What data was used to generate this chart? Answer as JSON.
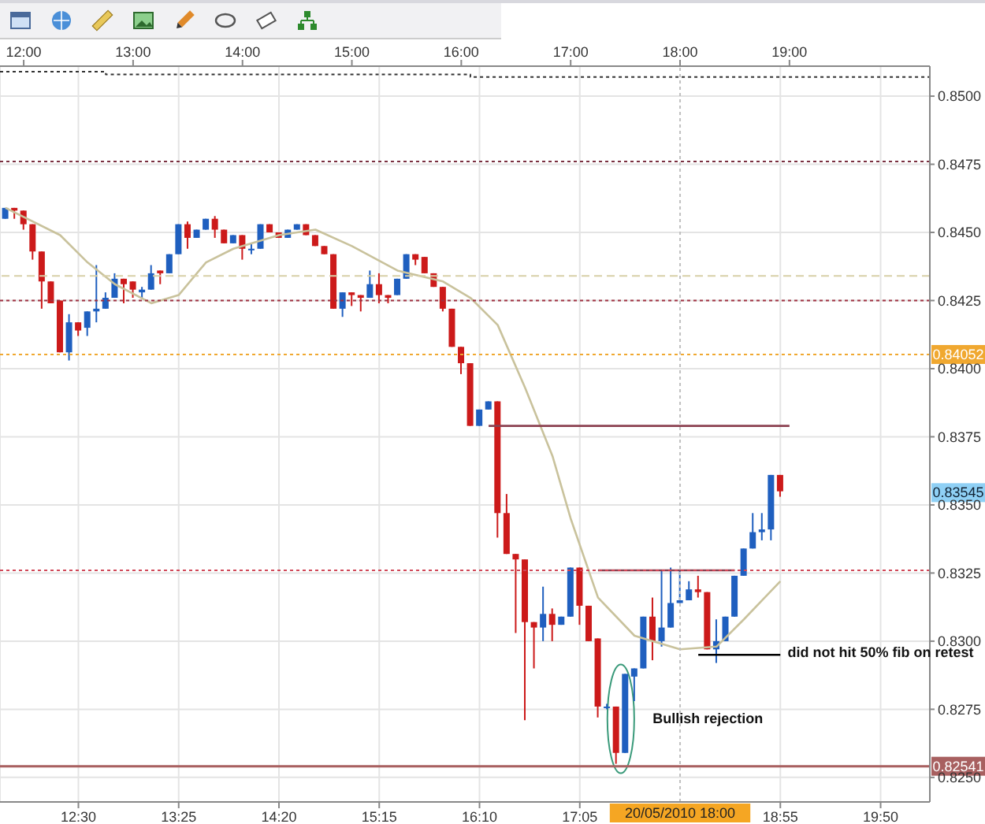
{
  "chart_data": {
    "type": "candlestick",
    "x": [
      "2010-05-20T11:50",
      "2010-05-20T11:55",
      "2010-05-20T12:00",
      "2010-05-20T12:05",
      "2010-05-20T12:10",
      "2010-05-20T12:15",
      "2010-05-20T12:20",
      "2010-05-20T12:25",
      "2010-05-20T12:30",
      "2010-05-20T12:35",
      "2010-05-20T12:40",
      "2010-05-20T12:45",
      "2010-05-20T12:50",
      "2010-05-20T12:55",
      "2010-05-20T13:00",
      "2010-05-20T13:05",
      "2010-05-20T13:10",
      "2010-05-20T13:15",
      "2010-05-20T13:20",
      "2010-05-20T13:25",
      "2010-05-20T13:30",
      "2010-05-20T13:35",
      "2010-05-20T13:40",
      "2010-05-20T13:45",
      "2010-05-20T13:50",
      "2010-05-20T13:55",
      "2010-05-20T14:00",
      "2010-05-20T14:05",
      "2010-05-20T14:10",
      "2010-05-20T14:15",
      "2010-05-20T14:20",
      "2010-05-20T14:25",
      "2010-05-20T14:30",
      "2010-05-20T14:35",
      "2010-05-20T14:40",
      "2010-05-20T14:45",
      "2010-05-20T14:50",
      "2010-05-20T14:55",
      "2010-05-20T15:00",
      "2010-05-20T15:05",
      "2010-05-20T15:10",
      "2010-05-20T15:15",
      "2010-05-20T15:20",
      "2010-05-20T15:25",
      "2010-05-20T15:30",
      "2010-05-20T15:35",
      "2010-05-20T15:40",
      "2010-05-20T15:45",
      "2010-05-20T15:50",
      "2010-05-20T15:55",
      "2010-05-20T16:00",
      "2010-05-20T16:05",
      "2010-05-20T16:10",
      "2010-05-20T16:15",
      "2010-05-20T16:20",
      "2010-05-20T16:25",
      "2010-05-20T16:30",
      "2010-05-20T16:35",
      "2010-05-20T16:40",
      "2010-05-20T16:45",
      "2010-05-20T16:50",
      "2010-05-20T16:55",
      "2010-05-20T17:00",
      "2010-05-20T17:05",
      "2010-05-20T17:10",
      "2010-05-20T17:15",
      "2010-05-20T17:20",
      "2010-05-20T17:25",
      "2010-05-20T17:30",
      "2010-05-20T17:35",
      "2010-05-20T17:40",
      "2010-05-20T17:45",
      "2010-05-20T17:50",
      "2010-05-20T17:55",
      "2010-05-20T18:00",
      "2010-05-20T18:05",
      "2010-05-20T18:10",
      "2010-05-20T18:15",
      "2010-05-20T18:20",
      "2010-05-20T18:25",
      "2010-05-20T18:30",
      "2010-05-20T18:35",
      "2010-05-20T18:40",
      "2010-05-20T18:45",
      "2010-05-20T18:50",
      "2010-05-20T18:55"
    ],
    "ohlc": [
      [
        0.8455,
        0.8459,
        0.8455,
        0.8459
      ],
      [
        0.8459,
        0.8459,
        0.8455,
        0.8458
      ],
      [
        0.8458,
        0.8458,
        0.8451,
        0.8453
      ],
      [
        0.8453,
        0.8453,
        0.844,
        0.8443
      ],
      [
        0.8443,
        0.8443,
        0.8422,
        0.8432
      ],
      [
        0.8432,
        0.8432,
        0.8424,
        0.8424
      ],
      [
        0.8425,
        0.8425,
        0.8406,
        0.8406
      ],
      [
        0.8406,
        0.842,
        0.8403,
        0.8417
      ],
      [
        0.8417,
        0.8417,
        0.8412,
        0.8414
      ],
      [
        0.8415,
        0.8421,
        0.8412,
        0.8421
      ],
      [
        0.8421,
        0.8438,
        0.8417,
        0.8422
      ],
      [
        0.8422,
        0.8428,
        0.8422,
        0.8426
      ],
      [
        0.8426,
        0.8435,
        0.8426,
        0.8433
      ],
      [
        0.8433,
        0.8433,
        0.8424,
        0.8431
      ],
      [
        0.8432,
        0.8432,
        0.8426,
        0.8429
      ],
      [
        0.8428,
        0.843,
        0.8426,
        0.8429
      ],
      [
        0.8429,
        0.8438,
        0.8429,
        0.8435
      ],
      [
        0.8436,
        0.8436,
        0.8431,
        0.8435
      ],
      [
        0.8435,
        0.8442,
        0.8435,
        0.8442
      ],
      [
        0.8442,
        0.8453,
        0.8442,
        0.8453
      ],
      [
        0.8453,
        0.8454,
        0.8444,
        0.8448
      ],
      [
        0.8448,
        0.8451,
        0.8448,
        0.8451
      ],
      [
        0.8451,
        0.8455,
        0.8451,
        0.8455
      ],
      [
        0.8455,
        0.8456,
        0.8448,
        0.8451
      ],
      [
        0.8451,
        0.8451,
        0.8446,
        0.8446
      ],
      [
        0.8446,
        0.8449,
        0.8446,
        0.8449
      ],
      [
        0.8449,
        0.8449,
        0.844,
        0.8444
      ],
      [
        0.8444,
        0.8446,
        0.8442,
        0.8444
      ],
      [
        0.8444,
        0.8453,
        0.8444,
        0.8453
      ],
      [
        0.8453,
        0.8453,
        0.845,
        0.845
      ],
      [
        0.845,
        0.845,
        0.8448,
        0.8448
      ],
      [
        0.8448,
        0.8451,
        0.8448,
        0.8451
      ],
      [
        0.8451,
        0.8453,
        0.8451,
        0.8453
      ],
      [
        0.8453,
        0.8453,
        0.8449,
        0.8449
      ],
      [
        0.8449,
        0.8449,
        0.8445,
        0.8445
      ],
      [
        0.8445,
        0.8445,
        0.8442,
        0.8442
      ],
      [
        0.8442,
        0.8442,
        0.8422,
        0.8422
      ],
      [
        0.8422,
        0.8428,
        0.8419,
        0.8428
      ],
      [
        0.8428,
        0.8428,
        0.8423,
        0.8427
      ],
      [
        0.8427,
        0.8427,
        0.8421,
        0.8426
      ],
      [
        0.8426,
        0.8436,
        0.8426,
        0.8431
      ],
      [
        0.8431,
        0.8435,
        0.8424,
        0.8427
      ],
      [
        0.8427,
        0.8427,
        0.8424,
        0.8426
      ],
      [
        0.8427,
        0.8433,
        0.8427,
        0.8433
      ],
      [
        0.8433,
        0.8442,
        0.8433,
        0.8442
      ],
      [
        0.8442,
        0.8442,
        0.8438,
        0.844
      ],
      [
        0.8441,
        0.8441,
        0.8435,
        0.8435
      ],
      [
        0.8435,
        0.8435,
        0.843,
        0.843
      ],
      [
        0.843,
        0.843,
        0.8421,
        0.8422
      ],
      [
        0.8422,
        0.8422,
        0.8408,
        0.8408
      ],
      [
        0.8408,
        0.8408,
        0.8398,
        0.8402
      ],
      [
        0.8402,
        0.8402,
        0.8379,
        0.8379
      ],
      [
        0.8379,
        0.8385,
        0.8379,
        0.8385
      ],
      [
        0.8385,
        0.8388,
        0.8385,
        0.8388
      ],
      [
        0.8388,
        0.8388,
        0.8338,
        0.8347
      ],
      [
        0.8347,
        0.8354,
        0.8332,
        0.8332
      ],
      [
        0.8332,
        0.8332,
        0.8303,
        0.833
      ],
      [
        0.833,
        0.833,
        0.8271,
        0.8307
      ],
      [
        0.8307,
        0.8307,
        0.829,
        0.8305
      ],
      [
        0.8305,
        0.832,
        0.83,
        0.831
      ],
      [
        0.831,
        0.8312,
        0.83,
        0.8306
      ],
      [
        0.8306,
        0.8309,
        0.8306,
        0.8309
      ],
      [
        0.8309,
        0.8327,
        0.8309,
        0.8327
      ],
      [
        0.8327,
        0.8327,
        0.8306,
        0.8313
      ],
      [
        0.8313,
        0.8313,
        0.83,
        0.83
      ],
      [
        0.8301,
        0.8301,
        0.8272,
        0.8276
      ],
      [
        0.8276,
        0.8277,
        0.8275,
        0.8276
      ],
      [
        0.8276,
        0.8276,
        0.8255,
        0.8259
      ],
      [
        0.8259,
        0.8288,
        0.8259,
        0.8288
      ],
      [
        0.8287,
        0.829,
        0.8278,
        0.829
      ],
      [
        0.829,
        0.8309,
        0.829,
        0.8309
      ],
      [
        0.8309,
        0.8316,
        0.8293,
        0.83
      ],
      [
        0.83,
        0.8326,
        0.8298,
        0.8305
      ],
      [
        0.8305,
        0.8327,
        0.8305,
        0.8314
      ],
      [
        0.8314,
        0.8326,
        0.8314,
        0.8315
      ],
      [
        0.8315,
        0.8322,
        0.8315,
        0.8319
      ],
      [
        0.8319,
        0.8324,
        0.8316,
        0.8318
      ],
      [
        0.8318,
        0.8318,
        0.8297,
        0.8297
      ],
      [
        0.8297,
        0.8308,
        0.8292,
        0.83
      ],
      [
        0.83,
        0.8309,
        0.83,
        0.8309
      ],
      [
        0.8309,
        0.8324,
        0.8309,
        0.8324
      ],
      [
        0.8324,
        0.8334,
        0.8324,
        0.8334
      ],
      [
        0.8334,
        0.8347,
        0.8334,
        0.834
      ],
      [
        0.834,
        0.8347,
        0.8337,
        0.8341
      ],
      [
        0.8341,
        0.8361,
        0.8337,
        0.8361
      ],
      [
        0.8361,
        0.8361,
        0.8353,
        0.8355
      ]
    ],
    "colors": [
      "#1f5fbf",
      "#cc1a1a",
      "#cc1a1a",
      "#cc1a1a",
      "#cc1a1a",
      "#cc1a1a",
      "#cc1a1a",
      "#1f5fbf",
      "#cc1a1a",
      "#1f5fbf",
      "#1f5fbf",
      "#1f5fbf",
      "#1f5fbf",
      "#cc1a1a",
      "#cc1a1a",
      "#1f5fbf",
      "#1f5fbf",
      "#cc1a1a",
      "#1f5fbf",
      "#1f5fbf",
      "#cc1a1a",
      "#1f5fbf",
      "#1f5fbf",
      "#cc1a1a",
      "#cc1a1a",
      "#1f5fbf",
      "#cc1a1a",
      "#1f5fbf",
      "#1f5fbf",
      "#cc1a1a",
      "#cc1a1a",
      "#1f5fbf",
      "#1f5fbf",
      "#cc1a1a",
      "#cc1a1a",
      "#cc1a1a",
      "#cc1a1a",
      "#1f5fbf",
      "#cc1a1a",
      "#cc1a1a",
      "#1f5fbf",
      "#cc1a1a",
      "#cc1a1a",
      "#1f5fbf",
      "#1f5fbf",
      "#cc1a1a",
      "#cc1a1a",
      "#cc1a1a",
      "#cc1a1a",
      "#cc1a1a",
      "#cc1a1a",
      "#cc1a1a",
      "#1f5fbf",
      "#1f5fbf",
      "#cc1a1a",
      "#cc1a1a",
      "#cc1a1a",
      "#cc1a1a",
      "#cc1a1a",
      "#1f5fbf",
      "#cc1a1a",
      "#1f5fbf",
      "#1f5fbf",
      "#cc1a1a",
      "#cc1a1a",
      "#cc1a1a",
      "#1f5fbf",
      "#cc1a1a",
      "#1f5fbf",
      "#1f5fbf",
      "#1f5fbf",
      "#cc1a1a",
      "#1f5fbf",
      "#1f5fbf",
      "#1f5fbf",
      "#1f5fbf",
      "#cc1a1a",
      "#cc1a1a",
      "#1f5fbf",
      "#1f5fbf",
      "#1f5fbf",
      "#1f5fbf",
      "#1f5fbf",
      "#1f5fbf",
      "#1f5fbf",
      "#cc1a1a"
    ],
    "series": [
      {
        "type": "line",
        "color": "#c9c29c",
        "x": [
          "2010-05-20T11:50",
          "2010-05-20T12:20",
          "2010-05-20T12:35",
          "2010-05-20T12:50",
          "2010-05-20T13:10",
          "2010-05-20T13:25",
          "2010-05-20T13:40",
          "2010-05-20T13:55",
          "2010-05-20T14:20",
          "2010-05-20T14:40",
          "2010-05-20T15:00",
          "2010-05-20T15:25",
          "2010-05-20T15:50",
          "2010-05-20T16:05",
          "2010-05-20T16:20",
          "2010-05-20T16:35",
          "2010-05-20T16:50",
          "2010-05-20T17:00",
          "2010-05-20T17:15",
          "2010-05-20T17:35",
          "2010-05-20T18:00",
          "2010-05-20T18:20",
          "2010-05-20T18:35",
          "2010-05-20T18:55"
        ],
        "values": [
          0.8459,
          0.8449,
          0.8439,
          0.8431,
          0.8424,
          0.8427,
          0.8439,
          0.8444,
          0.8449,
          0.8451,
          0.8445,
          0.8436,
          0.8432,
          0.8426,
          0.8416,
          0.8393,
          0.8368,
          0.8345,
          0.8316,
          0.8302,
          0.8297,
          0.8298,
          0.8308,
          0.8322
        ]
      },
      {
        "type": "step",
        "color": "#333333",
        "line_style": "dotted",
        "x": [
          "2010-05-20T11:47",
          "2010-05-20T12:45",
          "2010-05-20T16:05",
          "2010-05-20T20:17"
        ],
        "values": [
          0.8509,
          0.8508,
          0.8507,
          0.8507
        ]
      },
      {
        "type": "line",
        "color": "#8b4050",
        "x": [
          "2010-05-20T16:15",
          "2010-05-20T19:00"
        ],
        "values": [
          0.8379,
          0.8379
        ]
      },
      {
        "type": "line",
        "color": "#8b4050",
        "x": [
          "2010-05-20T17:15",
          "2010-05-20T18:30"
        ],
        "values": [
          0.8326,
          0.8326
        ]
      },
      {
        "type": "line",
        "color": "#000000",
        "x": [
          "2010-05-20T18:10",
          "2010-05-20T18:55"
        ],
        "values": [
          0.8295,
          0.8295
        ]
      }
    ],
    "xlim": [
      "2010-05-20T11:47",
      "2010-05-20T20:17"
    ],
    "xticks": [
      {
        "value": "2010-05-20T12:30",
        "label": "12:30"
      },
      {
        "value": "2010-05-20T13:25",
        "label": "13:25"
      },
      {
        "value": "2010-05-20T14:20",
        "label": "14:20"
      },
      {
        "value": "2010-05-20T15:15",
        "label": "15:15"
      },
      {
        "value": "2010-05-20T16:10",
        "label": "16:10"
      },
      {
        "value": "2010-05-20T17:05",
        "label": "17:05"
      },
      {
        "value": "2010-05-20T18:55",
        "label": "18:55"
      },
      {
        "value": "2010-05-20T19:50",
        "label": "19:50"
      }
    ],
    "x2lim": [
      "2010-05-20T11:47",
      "2010-05-20T20:17"
    ],
    "x2ticks": [
      {
        "value": "2010-05-20T12:00",
        "label": "12:00"
      },
      {
        "value": "2010-05-20T13:00",
        "label": "13:00"
      },
      {
        "value": "2010-05-20T14:00",
        "label": "14:00"
      },
      {
        "value": "2010-05-20T15:00",
        "label": "15:00"
      },
      {
        "value": "2010-05-20T16:00",
        "label": "16:00"
      },
      {
        "value": "2010-05-20T17:00",
        "label": "17:00"
      },
      {
        "value": "2010-05-20T18:00",
        "label": "18:00"
      },
      {
        "value": "2010-05-20T19:00",
        "label": "19:00"
      }
    ],
    "ylim": [
      0.8241,
      0.8511
    ],
    "yticks": [
      {
        "value": 0.825,
        "label": "0.8250"
      },
      {
        "value": 0.8275,
        "label": "0.8275"
      },
      {
        "value": 0.83,
        "label": "0.8300"
      },
      {
        "value": 0.8325,
        "label": "0.8325"
      },
      {
        "value": 0.835,
        "label": "0.8350"
      },
      {
        "value": 0.8375,
        "label": "0.8375"
      },
      {
        "value": 0.84,
        "label": "0.8400"
      },
      {
        "value": 0.8425,
        "label": "0.8425"
      },
      {
        "value": 0.845,
        "label": "0.8450"
      },
      {
        "value": 0.8475,
        "label": "0.8475"
      },
      {
        "value": 0.85,
        "label": "0.8500"
      }
    ],
    "grid": true,
    "ref_lines": [
      {
        "axis": "y",
        "value": 0.8476,
        "color": "#7a3040",
        "line_style": "dotted"
      },
      {
        "axis": "y",
        "value": 0.8434,
        "color": "#d8d0a8",
        "line_style": "dashed"
      },
      {
        "axis": "y",
        "value": 0.8425,
        "color": "#a03040",
        "line_style": "dotted"
      },
      {
        "axis": "y",
        "value": 0.84052,
        "label": "0.84052",
        "color": "#f0a830",
        "line_style": "dotted"
      },
      {
        "axis": "y",
        "value": 0.8326,
        "color": "#d04858",
        "line_style": "dotted"
      },
      {
        "axis": "y",
        "value": 0.82541,
        "label": "0.82541",
        "color": "#a86060",
        "line_style": "solid"
      },
      {
        "axis": "x",
        "value": "2010-05-20T18:00",
        "label": "20/05/2010 18:00",
        "color": "#c0c0c0",
        "line_style": "dotted"
      }
    ],
    "annotations": [
      "Bullish rejection",
      {
        "text": "did not hit 50% fib on retest",
        "x": "2010-05-20T18:59",
        "y": 0.8296
      },
      {
        "text": "0.83545",
        "y": 0.83545
      }
    ]
  }
}
